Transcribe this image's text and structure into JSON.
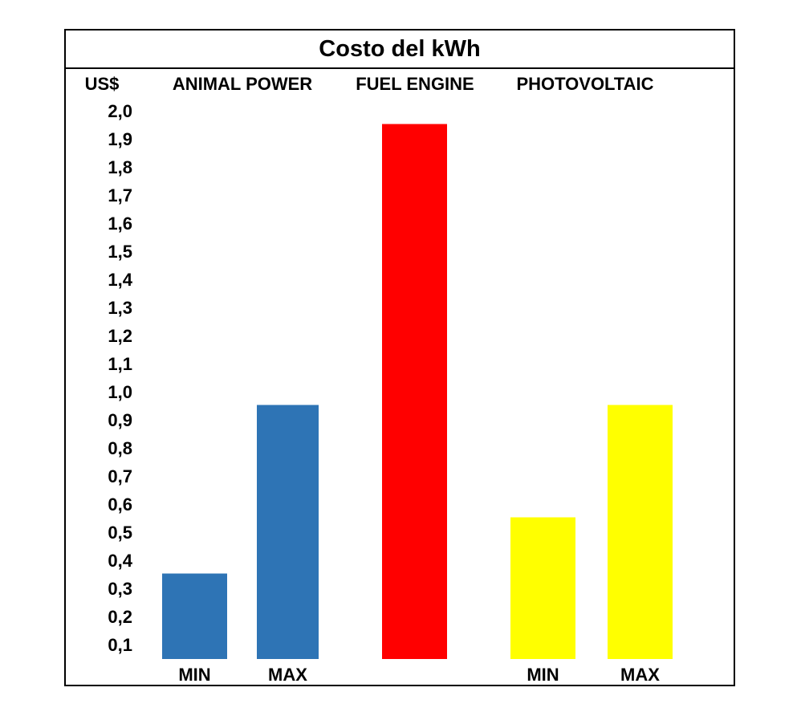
{
  "chart_data": {
    "type": "bar",
    "title": "Costo del kWh",
    "ylabel": "US$",
    "xlabel": "",
    "ylim": [
      0.05,
      2.0
    ],
    "y_ticks": [
      "2,0",
      "1,9",
      "1,8",
      "1,7",
      "1,6",
      "1,5",
      "1,4",
      "1,3",
      "1,2",
      "1,1",
      "1,0",
      "0,9",
      "0,8",
      "0,7",
      "0,6",
      "0,5",
      "0,4",
      "0,3",
      "0,2",
      "0,1"
    ],
    "groups": [
      "ANIMAL POWER",
      "FUEL ENGINE",
      "PHOTOVOLTAIC"
    ],
    "bars": [
      {
        "group": "ANIMAL POWER",
        "label": "MIN",
        "value": 0.35,
        "color": "#2E74B5"
      },
      {
        "group": "ANIMAL POWER",
        "label": "MAX",
        "value": 0.95,
        "color": "#2E74B5"
      },
      {
        "group": "FUEL ENGINE",
        "label": "",
        "value": 1.95,
        "color": "#FF0000"
      },
      {
        "group": "PHOTOVOLTAIC",
        "label": "MIN",
        "value": 0.55,
        "color": "#FFFF00"
      },
      {
        "group": "PHOTOVOLTAIC",
        "label": "MAX",
        "value": 0.95,
        "color": "#FFFF00"
      }
    ]
  }
}
